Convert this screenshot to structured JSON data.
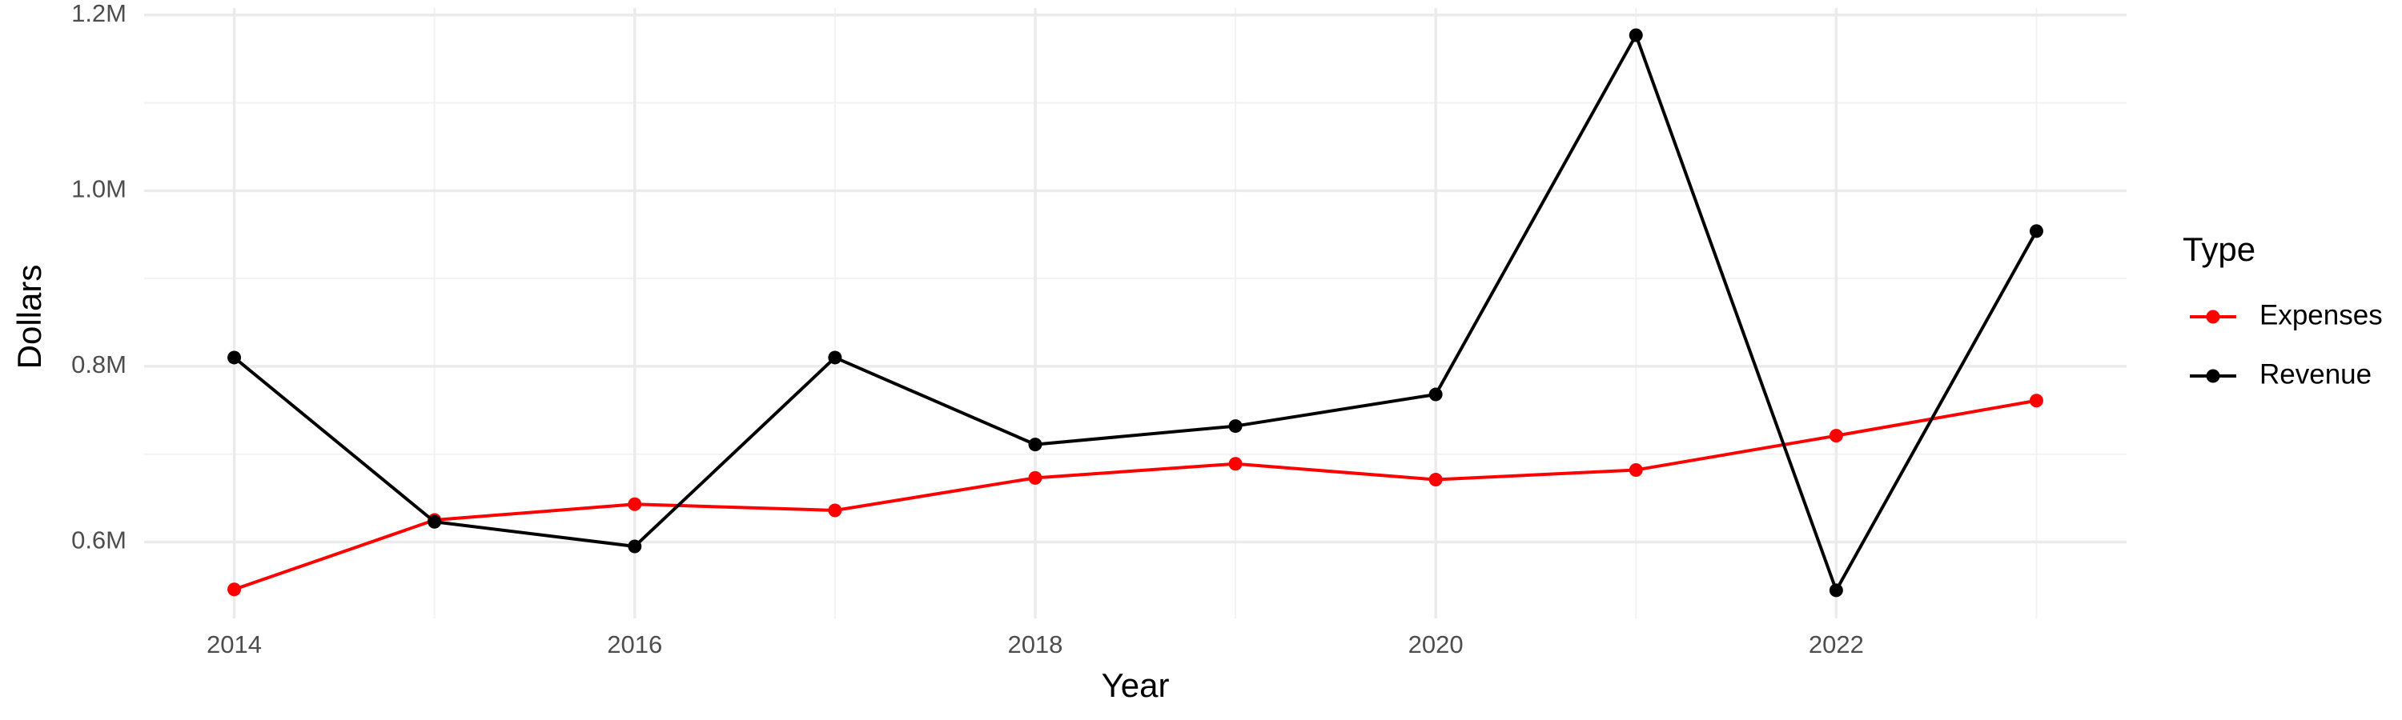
{
  "chart_data": {
    "type": "line",
    "x_label": "Year",
    "y_label": "Dollars",
    "legend_title": "Type",
    "legend_position": "right",
    "x": [
      2014,
      2015,
      2016,
      2017,
      2018,
      2019,
      2020,
      2021,
      2022,
      2023
    ],
    "series": [
      {
        "name": "Expenses",
        "color": "#ff0000",
        "values": [
          546000,
          625000,
          643000,
          636000,
          673000,
          689000,
          671000,
          682000,
          721000,
          761000
        ]
      },
      {
        "name": "Revenue",
        "color": "#000000",
        "values": [
          810000,
          623000,
          595000,
          810000,
          711000,
          732000,
          768000,
          1177000,
          545000,
          954000
        ]
      }
    ],
    "xlim": [
      2013.55,
      2023.45
    ],
    "xticks": [
      2014,
      2016,
      2018,
      2020,
      2022
    ],
    "xminorticks": [
      2015,
      2017,
      2019,
      2021,
      2023
    ],
    "ylim": [
      513000,
      1208000
    ],
    "yticks": [
      {
        "value": 600000,
        "label": "0.6M"
      },
      {
        "value": 800000,
        "label": "0.8M"
      },
      {
        "value": 1000000,
        "label": "1.0M"
      },
      {
        "value": 1200000,
        "label": "1.2M"
      }
    ],
    "yminorticks": [
      700000,
      900000,
      1100000
    ],
    "grid": true
  }
}
